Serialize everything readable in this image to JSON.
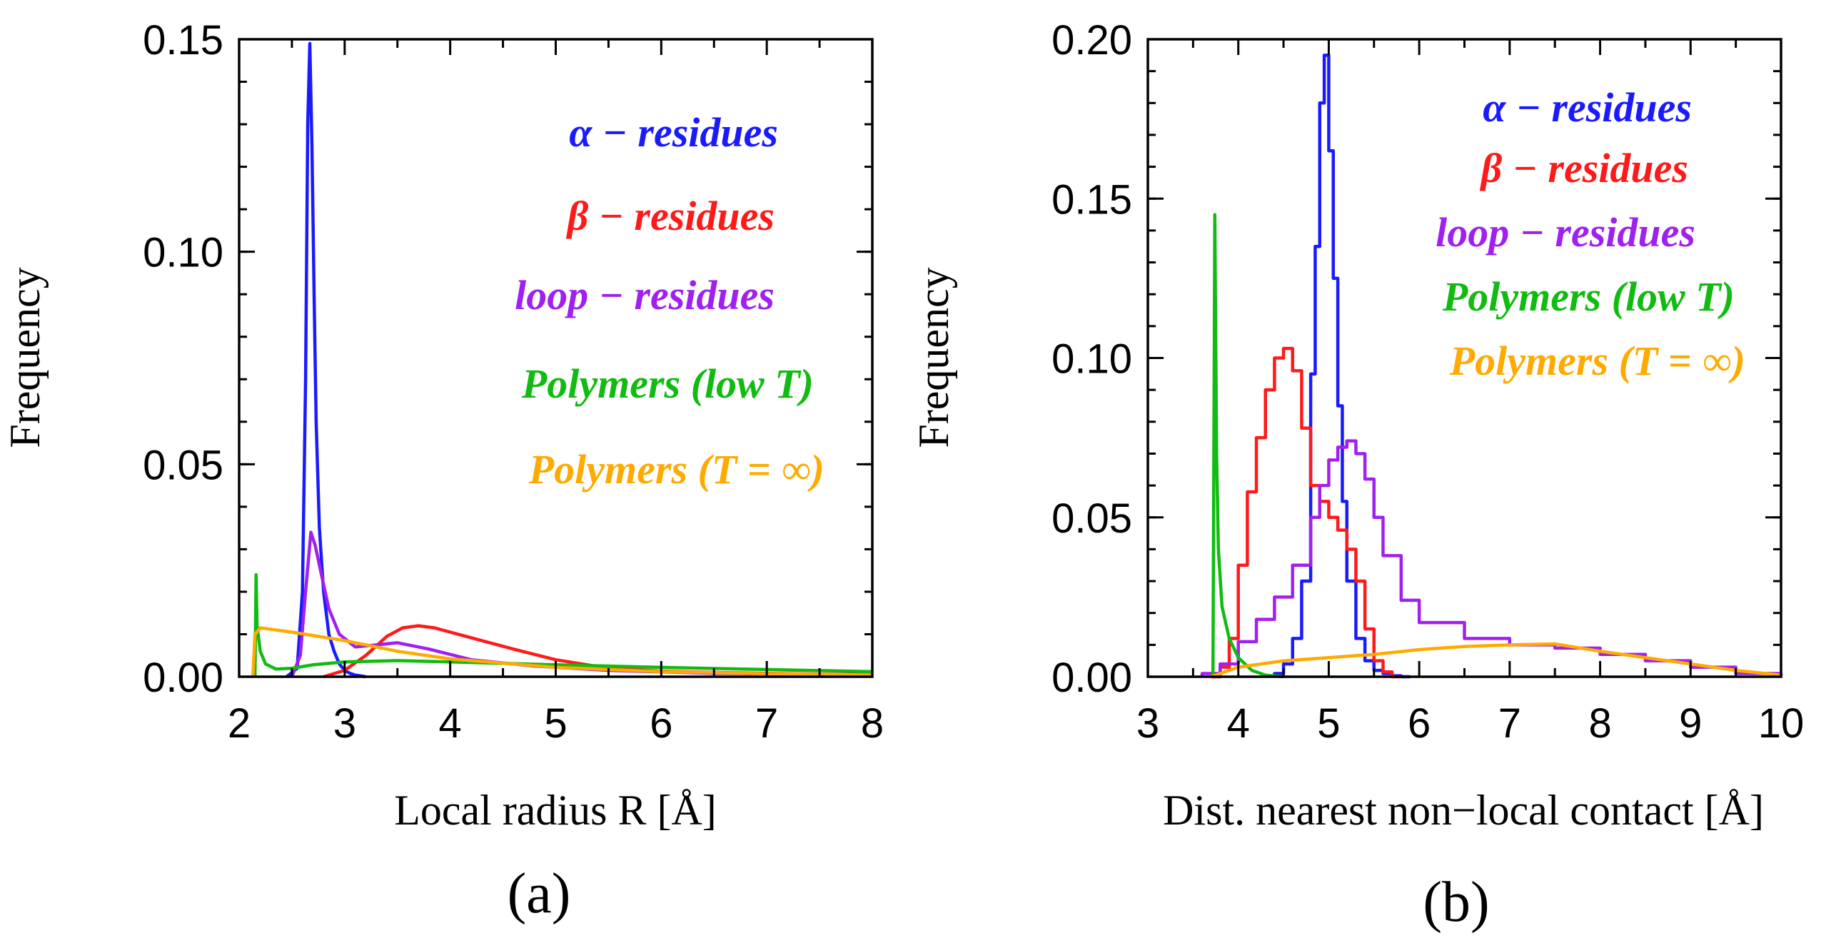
{
  "chart_data": [
    {
      "panel": "(a)",
      "type": "line",
      "xlabel": "Local radius R [Å]",
      "ylabel": "Frequency",
      "xlim": [
        2,
        8
      ],
      "ylim": [
        0,
        0.15
      ],
      "xticks": [
        "2",
        "3",
        "4",
        "5",
        "6",
        "7",
        "8"
      ],
      "yticks": [
        "0.00",
        "0.05",
        "0.10",
        "0.15"
      ],
      "legend_position": "top-right",
      "series": [
        {
          "name": "α − residues",
          "color": "#1a1aff",
          "x": [
            2.45,
            2.55,
            2.6,
            2.63,
            2.65,
            2.67,
            2.69,
            2.71,
            2.73,
            2.76,
            2.8,
            2.85,
            2.9,
            2.95,
            3.0,
            3.05,
            3.1,
            3.2
          ],
          "y": [
            0,
            0.002,
            0.02,
            0.07,
            0.13,
            0.149,
            0.125,
            0.09,
            0.06,
            0.035,
            0.02,
            0.01,
            0.006,
            0.003,
            0.0015,
            0.0008,
            0.0004,
            0
          ]
        },
        {
          "name": "β − residues",
          "color": "#ff1a1a",
          "x": [
            2.8,
            3.0,
            3.2,
            3.4,
            3.55,
            3.7,
            3.85,
            4.0,
            4.3,
            4.6,
            5.0,
            5.5,
            6.0,
            6.5,
            7.0,
            7.5,
            8.0
          ],
          "y": [
            0,
            0.0015,
            0.005,
            0.0095,
            0.0115,
            0.012,
            0.0115,
            0.0105,
            0.0085,
            0.0065,
            0.004,
            0.002,
            0.0013,
            0.001,
            0.0008,
            0.0006,
            0.0005
          ]
        },
        {
          "name": "loop − residues",
          "color": "#a020f0",
          "x": [
            2.5,
            2.58,
            2.63,
            2.68,
            2.72,
            2.78,
            2.85,
            2.95,
            3.1,
            3.3,
            3.5,
            3.8,
            4.2,
            4.8,
            5.5,
            6.5,
            8.0
          ],
          "y": [
            0,
            0.005,
            0.02,
            0.034,
            0.031,
            0.024,
            0.016,
            0.01,
            0.007,
            0.0075,
            0.008,
            0.0065,
            0.004,
            0.0025,
            0.0015,
            0.0008,
            0.0004
          ]
        },
        {
          "name": "Polymers (low T)",
          "color": "#11bb11",
          "x": [
            2.15,
            2.16,
            2.17,
            2.2,
            2.25,
            2.35,
            2.5,
            2.7,
            3.0,
            3.5,
            4.0,
            5.0,
            6.0,
            7.0,
            8.0
          ],
          "y": [
            0,
            0.024,
            0.012,
            0.006,
            0.003,
            0.0018,
            0.002,
            0.0028,
            0.0035,
            0.0038,
            0.0035,
            0.0028,
            0.0022,
            0.0017,
            0.0012
          ]
        },
        {
          "name": "Polymers (T = ∞)",
          "color": "#ffaa00",
          "x": [
            2.13,
            2.15,
            2.2,
            2.5,
            3.0,
            3.5,
            4.0,
            5.0,
            6.0,
            7.0,
            8.0
          ],
          "y": [
            0,
            0.01,
            0.0115,
            0.0105,
            0.0085,
            0.006,
            0.0042,
            0.0022,
            0.0012,
            0.0007,
            0.0004
          ]
        }
      ]
    },
    {
      "panel": "(b)",
      "type": "line",
      "xlabel": "Dist. nearest non−local contact [Å]",
      "ylabel": "Frequency",
      "xlim": [
        3,
        10
      ],
      "ylim": [
        0,
        0.2
      ],
      "xticks": [
        "3",
        "4",
        "5",
        "6",
        "7",
        "8",
        "9",
        "10"
      ],
      "yticks": [
        "0.00",
        "0.05",
        "0.10",
        "0.15",
        "0.20"
      ],
      "legend_position": "top-right",
      "series": [
        {
          "name": "α − residues",
          "color": "#1a1aff",
          "step": true,
          "x": [
            4.4,
            4.5,
            4.6,
            4.7,
            4.8,
            4.85,
            4.9,
            4.95,
            5.0,
            5.05,
            5.1,
            5.15,
            5.2,
            5.3,
            5.4,
            5.5,
            5.6,
            5.7,
            5.8
          ],
          "y": [
            0.001,
            0.004,
            0.012,
            0.03,
            0.095,
            0.135,
            0.18,
            0.195,
            0.165,
            0.125,
            0.085,
            0.055,
            0.03,
            0.012,
            0.005,
            0.002,
            0.001,
            0.0003,
            0
          ]
        },
        {
          "name": "β − residues",
          "color": "#ff1a1a",
          "step": true,
          "x": [
            3.7,
            3.8,
            3.9,
            4.0,
            4.1,
            4.2,
            4.3,
            4.4,
            4.5,
            4.6,
            4.7,
            4.8,
            4.9,
            5.0,
            5.1,
            5.2,
            5.3,
            5.4,
            5.5,
            5.6,
            5.7
          ],
          "y": [
            0,
            0.003,
            0.012,
            0.035,
            0.058,
            0.075,
            0.09,
            0.1,
            0.103,
            0.096,
            0.078,
            0.06,
            0.055,
            0.05,
            0.046,
            0.04,
            0.03,
            0.015,
            0.005,
            0.0015,
            0
          ]
        },
        {
          "name": "loop − residues",
          "color": "#a020f0",
          "step": true,
          "x": [
            3.6,
            3.8,
            4.0,
            4.2,
            4.4,
            4.6,
            4.8,
            4.9,
            5.0,
            5.1,
            5.2,
            5.3,
            5.4,
            5.5,
            5.6,
            5.8,
            6.0,
            6.5,
            7.0,
            7.5,
            8.0,
            8.5,
            9.0,
            9.5,
            10.0
          ],
          "y": [
            0.001,
            0.004,
            0.011,
            0.018,
            0.025,
            0.035,
            0.05,
            0.06,
            0.068,
            0.072,
            0.074,
            0.07,
            0.062,
            0.05,
            0.038,
            0.024,
            0.017,
            0.012,
            0.01,
            0.009,
            0.007,
            0.005,
            0.003,
            0.001,
            0.0005
          ]
        },
        {
          "name": "Polymers (low T)",
          "color": "#11bb11",
          "x": [
            3.72,
            3.74,
            3.76,
            3.78,
            3.82,
            3.9,
            4.0,
            4.15,
            4.3,
            4.5
          ],
          "y": [
            0,
            0.145,
            0.07,
            0.04,
            0.022,
            0.012,
            0.006,
            0.002,
            0.0005,
            0
          ]
        },
        {
          "name": "Polymers (T = ∞)",
          "color": "#ffaa00",
          "x": [
            3.7,
            4.0,
            4.5,
            5.0,
            5.5,
            6.0,
            6.5,
            7.0,
            7.5,
            8.0,
            8.5,
            9.0,
            9.5,
            10.0
          ],
          "y": [
            0,
            0.003,
            0.005,
            0.006,
            0.007,
            0.0085,
            0.0095,
            0.01,
            0.0103,
            0.008,
            0.006,
            0.004,
            0.002,
            0.0005
          ]
        }
      ]
    }
  ]
}
